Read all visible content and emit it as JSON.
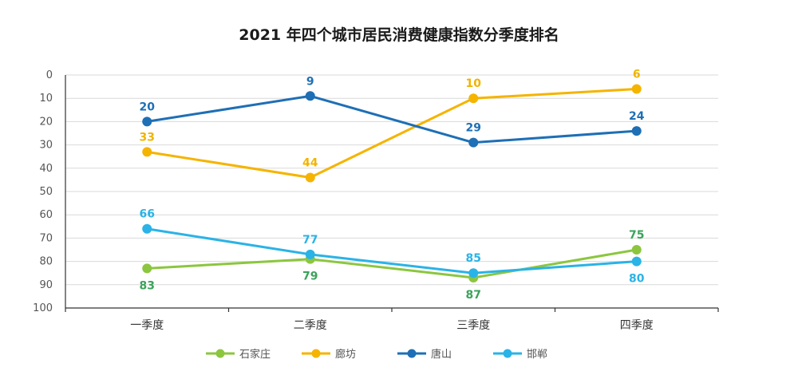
{
  "chart_data": {
    "type": "line",
    "title": "2021 年四个城市居民消费健康指数分季度排名",
    "categories": [
      "一季度",
      "二季度",
      "三季度",
      "四季度"
    ],
    "ylim": [
      0,
      100
    ],
    "y_inverted": true,
    "yticks": [
      0,
      10,
      20,
      30,
      40,
      50,
      60,
      70,
      80,
      90,
      100
    ],
    "grid": true,
    "legend_position": "bottom",
    "series": [
      {
        "name": "石家庄",
        "color": "#8cc63f",
        "label_color": "#3aa35a",
        "values": [
          83,
          79,
          87,
          75
        ],
        "label_pos": [
          "below",
          "below",
          "below",
          "above"
        ]
      },
      {
        "name": "廊坊",
        "color": "#f5b400",
        "label_color": "#f0b400",
        "values": [
          33,
          44,
          10,
          6
        ],
        "label_pos": [
          "above",
          "above",
          "above",
          "above"
        ]
      },
      {
        "name": "唐山",
        "color": "#1e6fb5",
        "label_color": "#1e6fb5",
        "values": [
          20,
          9,
          29,
          24
        ],
        "label_pos": [
          "above",
          "above",
          "above",
          "above"
        ]
      },
      {
        "name": "邯郸",
        "color": "#2ab3e6",
        "label_color": "#2ab3e6",
        "values": [
          66,
          77,
          85,
          80
        ],
        "label_pos": [
          "above",
          "above",
          "above",
          "below"
        ]
      }
    ]
  }
}
